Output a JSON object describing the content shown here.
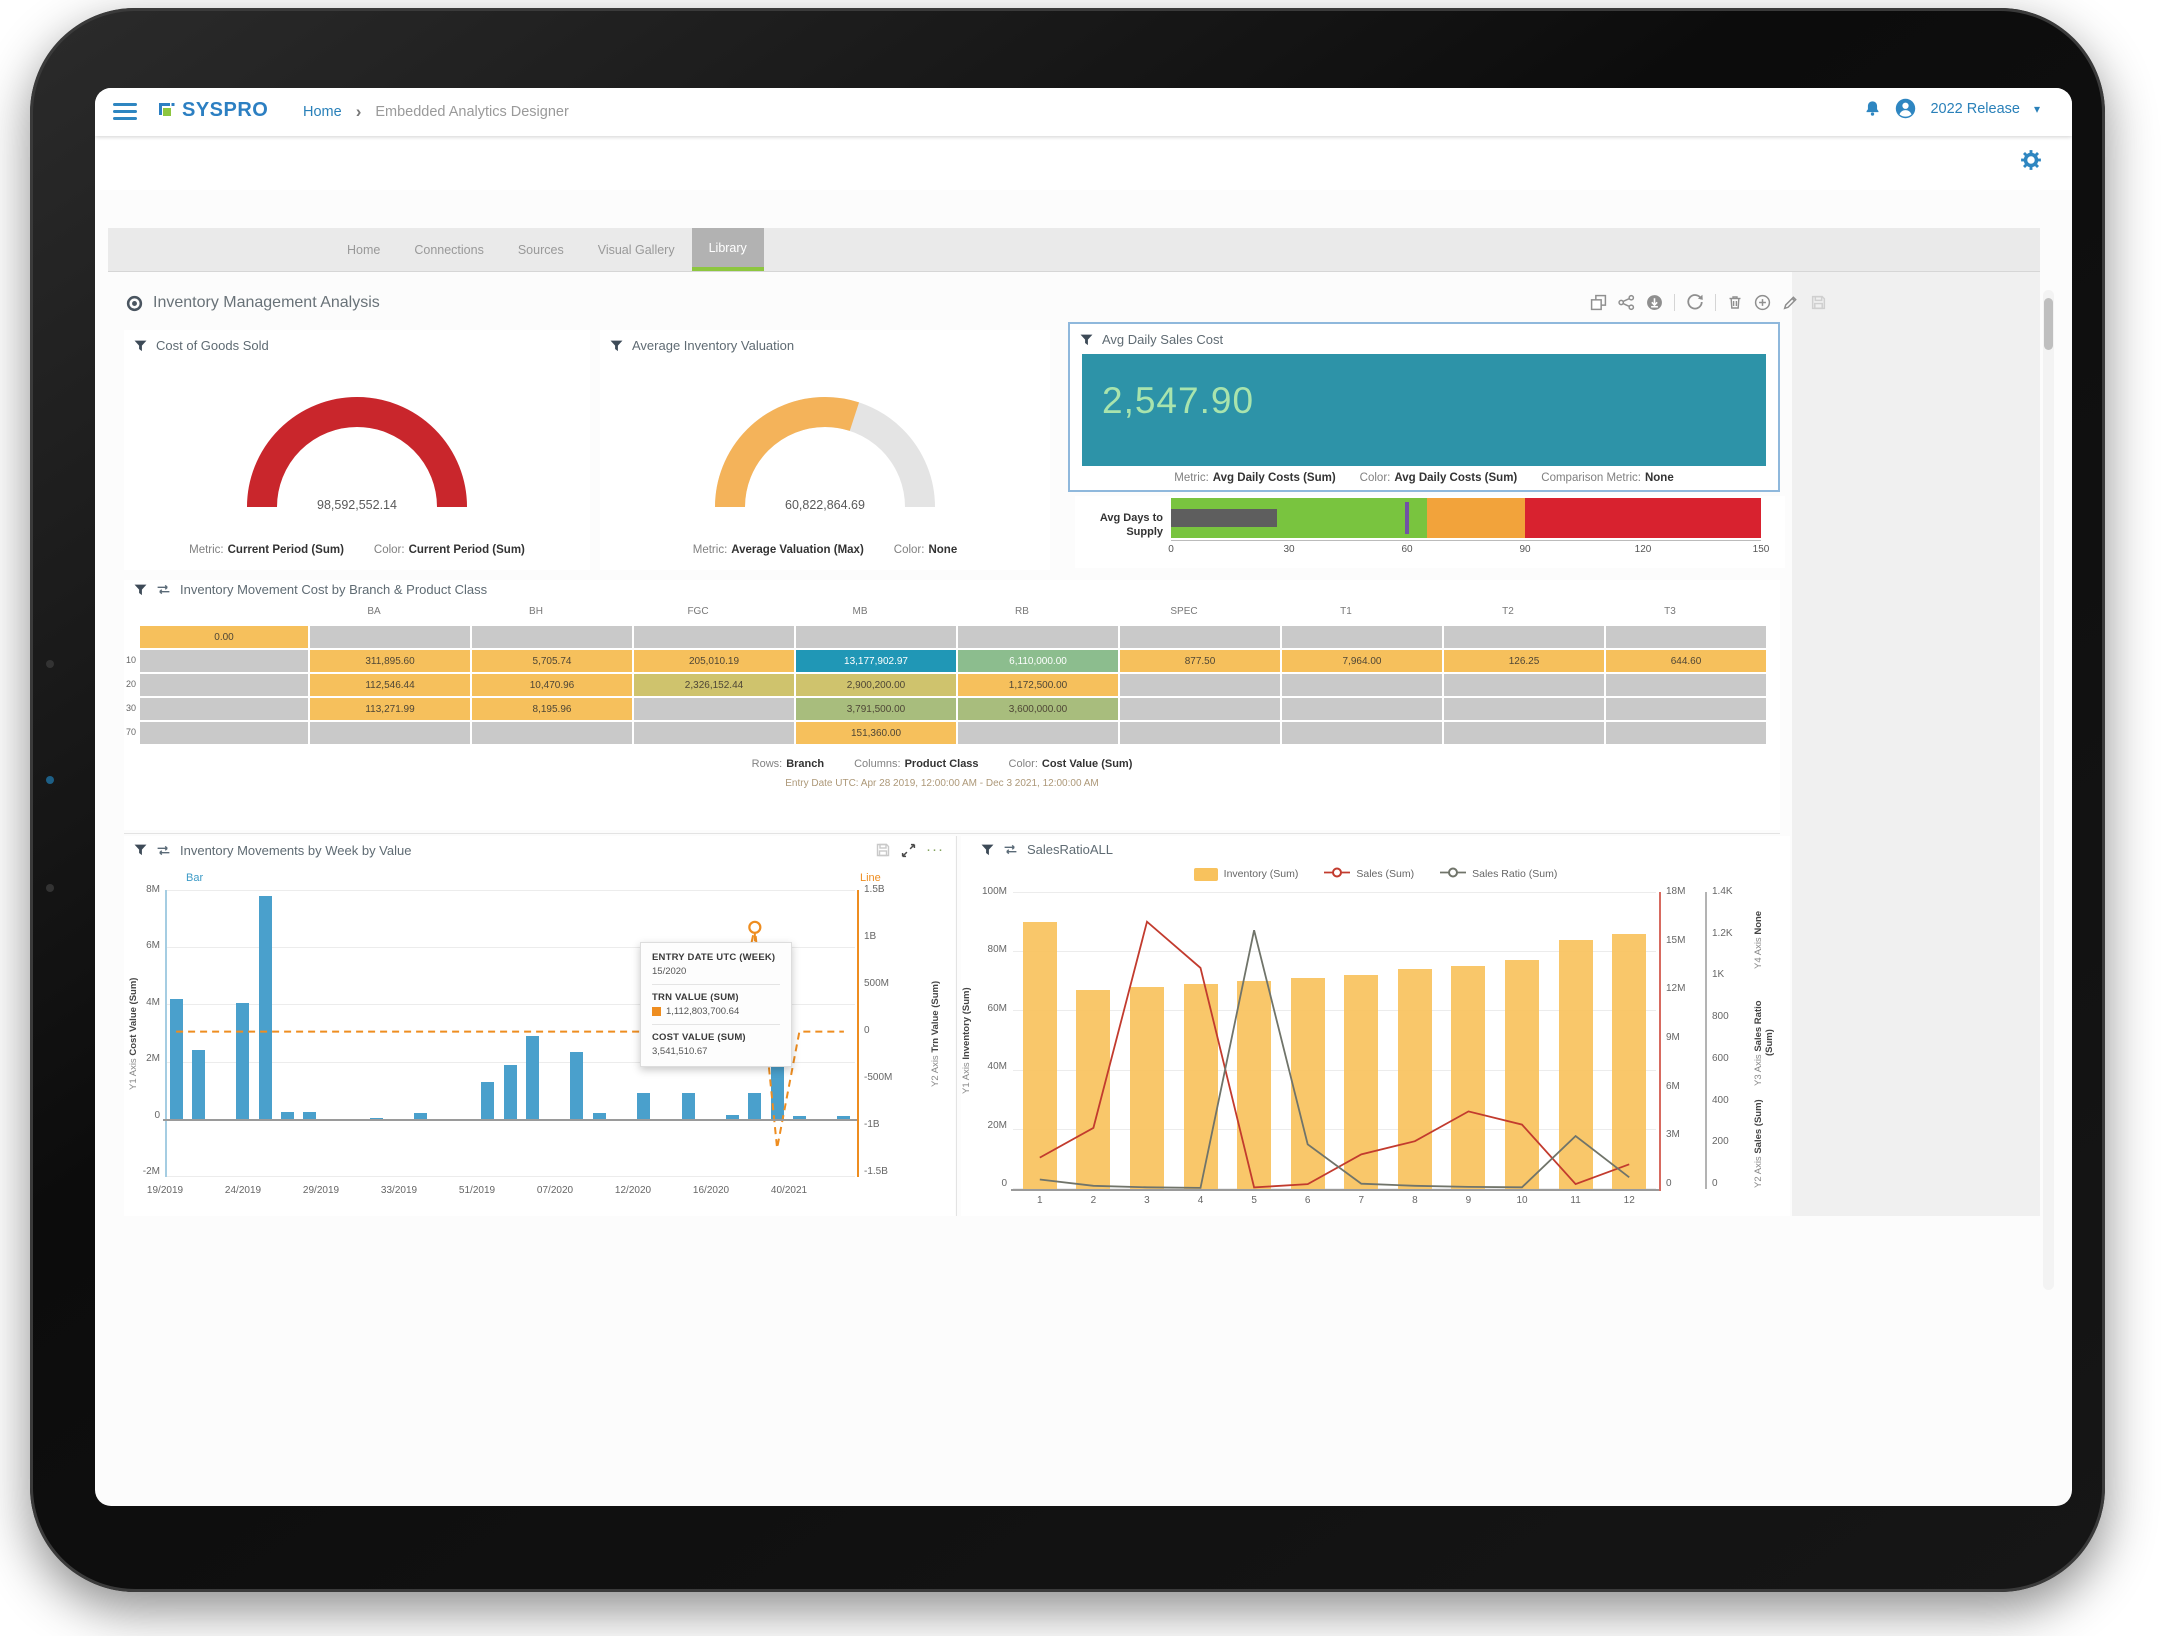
{
  "brand": {
    "name": "SYSPRO"
  },
  "topbar": {
    "home": "Home",
    "breadcrumb": "Embedded Analytics Designer",
    "release": "2022 Release"
  },
  "tabs": {
    "items": [
      {
        "label": "Home"
      },
      {
        "label": "Connections"
      },
      {
        "label": "Sources"
      },
      {
        "label": "Visual Gallery"
      },
      {
        "label": "Library"
      }
    ],
    "active_index": 4,
    "active_underline": "#8dc63f"
  },
  "page": {
    "title": "Inventory Management Analysis"
  },
  "labels": {
    "metric": "Metric:",
    "color": "Color:",
    "comparison": "Comparison Metric:",
    "rows": "Rows:",
    "columns": "Columns:"
  },
  "icons": {
    "toolbar": [
      "copy",
      "share",
      "download",
      "refresh",
      "delete",
      "add",
      "edit",
      "save"
    ],
    "chart_header": [
      "save",
      "expand",
      "more-options"
    ]
  },
  "kpis": {
    "cogs": {
      "title": "Cost of Goods Sold",
      "value": "98,592,552.14",
      "metric": "Current Period (Sum)",
      "color": "Current Period (Sum)",
      "fill": 1,
      "arc_color": "#c9262c"
    },
    "valuation": {
      "title": "Average Inventory Valuation",
      "value": "60,822,864.69",
      "metric": "Average Valuation (Max)",
      "color": "None",
      "fill": 0.6,
      "arc_color": "#f4b35a"
    },
    "daily_cost": {
      "title": "Avg Daily Sales Cost",
      "value": "2,547.90",
      "metric": "Avg Daily Costs (Sum)",
      "color": "Avg Daily Costs (Sum)",
      "comparison": "None",
      "bg": "#2d93a8",
      "value_color": "#a9e4ad"
    }
  },
  "chart_data": [
    {
      "id": "avg_days_to_supply",
      "type": "bullet",
      "label": "Avg Days to Supply",
      "xlim": [
        0,
        150
      ],
      "ticks": [
        "0",
        "30",
        "60",
        "90",
        "120",
        "150"
      ],
      "bands": [
        {
          "from": 0,
          "to": 65,
          "color": "#79c43f"
        },
        {
          "from": 65,
          "to": 90,
          "color": "#f2a33b"
        },
        {
          "from": 90,
          "to": 150,
          "color": "#d8222f"
        }
      ],
      "measure": 27,
      "measure_color": "#5e5e5e",
      "target": 60,
      "target_color": "#7153a5"
    },
    {
      "id": "inventory_movement_heatmap",
      "type": "heatmap",
      "title": "Inventory Movement Cost by Branch & Product Class",
      "columns": [
        "BA",
        "BH",
        "FGC",
        "MB",
        "RB",
        "SPEC",
        "T1",
        "T2",
        "T3"
      ],
      "rows": [
        {
          "label": "",
          "first": {
            "v": "0.00",
            "c": "orange"
          },
          "cells": [
            null,
            null,
            null,
            null,
            null,
            null,
            null,
            null,
            null
          ]
        },
        {
          "label": "10",
          "first": null,
          "cells": [
            {
              "v": "311,895.60",
              "c": "orange"
            },
            {
              "v": "5,705.74",
              "c": "orange"
            },
            {
              "v": "205,010.19",
              "c": "orange"
            },
            {
              "v": "13,177,902.97",
              "c": "teal"
            },
            {
              "v": "6,110,000.00",
              "c": "green"
            },
            {
              "v": "877.50",
              "c": "orange"
            },
            {
              "v": "7,964.00",
              "c": "orange"
            },
            {
              "v": "126.25",
              "c": "orange"
            },
            {
              "v": "644.60",
              "c": "orange"
            }
          ]
        },
        {
          "label": "20",
          "first": null,
          "cells": [
            {
              "v": "112,546.44",
              "c": "orange"
            },
            {
              "v": "10,470.96",
              "c": "orange"
            },
            {
              "v": "2,326,152.44",
              "c": "khaki"
            },
            {
              "v": "2,900,200.00",
              "c": "khaki"
            },
            {
              "v": "1,172,500.00",
              "c": "orange"
            },
            null,
            null,
            null,
            null
          ]
        },
        {
          "label": "30",
          "first": null,
          "cells": [
            {
              "v": "113,271.99",
              "c": "orange"
            },
            {
              "v": "8,195.96",
              "c": "orange"
            },
            null,
            {
              "v": "3,791,500.00",
              "c": "sage"
            },
            {
              "v": "3,600,000.00",
              "c": "sage"
            },
            null,
            null,
            null,
            null
          ]
        },
        {
          "label": "70",
          "first": null,
          "cells": [
            null,
            null,
            null,
            {
              "v": "151,360.00",
              "c": "orange"
            },
            null,
            null,
            null,
            null,
            null
          ]
        }
      ],
      "palette": {
        "orange": "#f6c05c",
        "khaki": "#cfc36d",
        "sage": "#a8bd7d",
        "teal": "#2097b6",
        "green": "#8cbd8e",
        "empty": "#c9c9c9",
        "text_dark": "#4e4636",
        "text_light": "#ffffff"
      },
      "footer": {
        "rows": "Branch",
        "columns": "Product Class",
        "color": "Cost Value (Sum)",
        "range": "Entry Date UTC: Apr 28 2019, 12:00:00 AM - Dec 3 2021, 12:00:00 AM"
      }
    },
    {
      "id": "weekly_movements",
      "type": "bar+line",
      "title": "Inventory Movements by Week by Value",
      "bar_series_label": "Bar",
      "line_series_label": "Line",
      "bar_color": "#4aa0cc",
      "line_color": "#ee8d20",
      "y1": {
        "label_prefix": "Y1 Axis",
        "label": "Cost Value (Sum)",
        "ticks": [
          "8M",
          "6M",
          "4M",
          "2M",
          "0",
          "-2M"
        ],
        "max": 8,
        "min": -2
      },
      "y2": {
        "label_prefix": "Y2 Axis",
        "label": "Trn Value (Sum)",
        "ticks": [
          "1.5B",
          "1B",
          "500M",
          "0",
          "-500M",
          "-1B",
          "-1.5B"
        ],
        "max": 1.5,
        "min": -1.5
      },
      "x_labels": [
        "19/2019",
        "24/2019",
        "29/2019",
        "33/2019",
        "51/2019",
        "07/2020",
        "12/2020",
        "16/2020",
        "40/2021"
      ],
      "bars_m": [
        4.2,
        2.4,
        null,
        4.05,
        7.8,
        0.25,
        0.25,
        null,
        null,
        0.05,
        null,
        0.2,
        null,
        null,
        1.3,
        1.9,
        2.9,
        null,
        2.35,
        0.2,
        null,
        0.9,
        null,
        0.9,
        null,
        0.15,
        0.9,
        2.2,
        0.1,
        null,
        0.1
      ],
      "line_b": [
        0.02,
        0.02,
        0.02,
        0.02,
        0.02,
        0.02,
        0.02,
        0.02,
        0.02,
        0.02,
        0.02,
        0.02,
        0.02,
        0.02,
        0.02,
        0.02,
        0.02,
        0.02,
        0.02,
        0.02,
        0.02,
        0.02,
        0.02,
        0.02,
        0.02,
        0.02,
        1.11,
        -1.2,
        0.02,
        0.02,
        0.02
      ],
      "marker_index": 26,
      "tooltip": {
        "header": "ENTRY DATE UTC (WEEK)",
        "week": "15/2020",
        "trn_label": "TRN VALUE (SUM)",
        "trn_value": "1,112,803,700.64",
        "trn_swatch": "#ee8d20",
        "cost_label": "COST VALUE (SUM)",
        "cost_value": "3,541,510.67"
      }
    },
    {
      "id": "sales_ratio",
      "type": "combo",
      "title": "SalesRatioALL",
      "categories": [
        "1",
        "2",
        "3",
        "4",
        "5",
        "6",
        "7",
        "8",
        "9",
        "10",
        "11",
        "12"
      ],
      "series": [
        {
          "name": "Inventory (Sum)",
          "type": "bar",
          "axis": "y1",
          "color": "#f8c25d",
          "values": [
            90,
            67,
            68,
            69,
            70,
            71,
            72,
            74,
            75,
            77,
            84,
            86
          ]
        },
        {
          "name": "Sales (Sum)",
          "type": "line",
          "axis": "y2",
          "color": "#c23b2e",
          "values": [
            1.9,
            3.7,
            16.2,
            13.4,
            0.1,
            0.3,
            2.1,
            2.9,
            4.7,
            3.9,
            0.3,
            1.5
          ]
        },
        {
          "name": "Sales Ratio (Sum)",
          "type": "line",
          "axis": "y3",
          "color": "#70746a",
          "values": [
            45,
            15,
            8,
            5,
            1220,
            210,
            25,
            15,
            10,
            8,
            250,
            55
          ]
        }
      ],
      "y1": {
        "label_prefix": "Y1 Axis",
        "label": "Inventory (Sum)",
        "ticks": [
          "100M",
          "80M",
          "60M",
          "40M",
          "20M",
          "0"
        ],
        "max": 100
      },
      "y2": {
        "label_prefix": "Y2 Axis",
        "label": "Sales (Sum)",
        "ticks": [
          "18M",
          "15M",
          "12M",
          "9M",
          "6M",
          "3M",
          "0"
        ],
        "max": 18
      },
      "y3": {
        "label_prefix": "Y3 Axis",
        "label": "Sales Ratio (Sum)",
        "ticks": [
          "1.4K",
          "1.2K",
          "1K",
          "800",
          "600",
          "400",
          "200",
          "0"
        ],
        "max": 1400
      },
      "y4": {
        "label_prefix": "Y4 Axis",
        "label": "None"
      }
    }
  ]
}
